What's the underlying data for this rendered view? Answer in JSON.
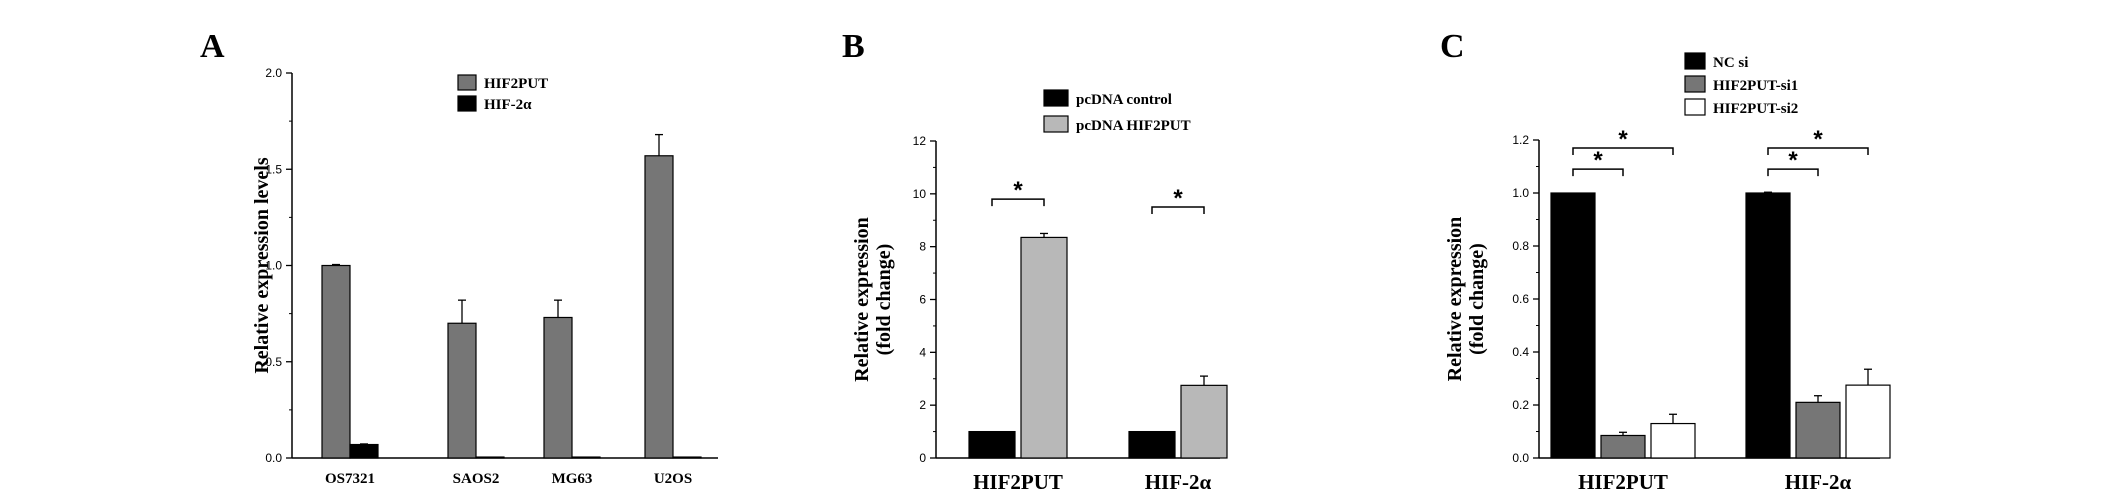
{
  "panels": [
    {
      "label": "A",
      "chart_data": {
        "type": "bar",
        "ylabel": "Relative expression levels",
        "ylim": [
          0,
          2.0
        ],
        "yticks": [
          "0.0",
          "0.5",
          "1.0",
          "1.5",
          "2.0"
        ],
        "categories": [
          "OS7321",
          "SAOS2",
          "MG63",
          "U2OS"
        ],
        "series": [
          {
            "name": "HIF2PUT",
            "values": [
              1.0,
              0.7,
              0.73,
              1.57
            ],
            "errors": [
              0.005,
              0.12,
              0.09,
              0.11
            ],
            "color": "#767676"
          },
          {
            "name": "HIF-2α",
            "values": [
              0.07,
              0.005,
              0.005,
              0.005
            ],
            "errors": [
              0.003,
              0.0,
              0.0,
              0.0
            ],
            "color": "#000000"
          }
        ],
        "legend_position": "top-right",
        "significance": []
      }
    },
    {
      "label": "B",
      "chart_data": {
        "type": "bar",
        "ylabel": "Relative expression (fold change)",
        "ylabel_lines": [
          "Relative expression",
          "(fold change)"
        ],
        "ylim": [
          0,
          12
        ],
        "yticks": [
          "0",
          "2",
          "4",
          "6",
          "8",
          "10",
          "12"
        ],
        "categories": [
          "HIF2PUT",
          "HIF-2α"
        ],
        "series": [
          {
            "name": "pcDNA control",
            "values": [
              1.0,
              1.0
            ],
            "errors": [
              0,
              0
            ],
            "color": "#000000"
          },
          {
            "name": "pcDNA HIF2PUT",
            "values": [
              8.35,
              2.75
            ],
            "errors": [
              0.15,
              0.35
            ],
            "color": "#b8b8b8"
          }
        ],
        "legend_position": "top-right",
        "significance": [
          {
            "category": 0,
            "from_series": 0,
            "to_series": 1,
            "level": 9.8,
            "label": "*"
          },
          {
            "category": 1,
            "from_series": 0,
            "to_series": 1,
            "level": 9.5,
            "label": "*"
          }
        ]
      }
    },
    {
      "label": "C",
      "chart_data": {
        "type": "bar",
        "ylabel": "Relative expression (fold change)",
        "ylabel_lines": [
          "Relative expression",
          "(fold change)"
        ],
        "ylim": [
          0,
          1.2
        ],
        "yticks": [
          "0.0",
          "0.2",
          "0.4",
          "0.6",
          "0.8",
          "1.0",
          "1.2"
        ],
        "categories": [
          "HIF2PUT",
          "HIF-2α"
        ],
        "series": [
          {
            "name": "NC si",
            "values": [
              1.0,
              1.0
            ],
            "errors": [
              0,
              0.003
            ],
            "color": "#000000"
          },
          {
            "name": "HIF2PUT-si1",
            "values": [
              0.085,
              0.21
            ],
            "errors": [
              0.012,
              0.025
            ],
            "color": "#767676"
          },
          {
            "name": "HIF2PUT-si2",
            "values": [
              0.13,
              0.275
            ],
            "errors": [
              0.035,
              0.06
            ],
            "color": "#ffffff"
          }
        ],
        "legend_position": "top",
        "significance": [
          {
            "category": 0,
            "from_series": 0,
            "to_series": 1,
            "level": 1.09,
            "label": "*"
          },
          {
            "category": 0,
            "from_series": 0,
            "to_series": 2,
            "level": 1.17,
            "label": "*"
          },
          {
            "category": 1,
            "from_series": 0,
            "to_series": 1,
            "level": 1.09,
            "label": "*"
          },
          {
            "category": 1,
            "from_series": 0,
            "to_series": 2,
            "level": 1.17,
            "label": "*"
          }
        ]
      }
    }
  ]
}
